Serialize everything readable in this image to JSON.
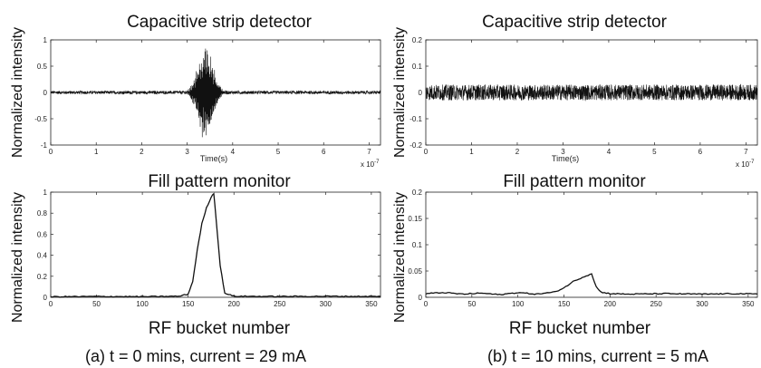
{
  "captions": {
    "a": "(a) t = 0 mins, current = 29 mA",
    "b": "(b) t = 10 mins, current = 5 mA"
  },
  "chart_data": [
    {
      "id": "a_top",
      "type": "line",
      "title": "Capacitive strip detector",
      "ylabel": "Normalized intensity",
      "xlabel": "Time(s)",
      "x_exponent": "x 10",
      "x_exponent_power": "-7",
      "xlim": [
        0,
        7.25
      ],
      "ylim": [
        -1,
        1
      ],
      "xticks": [
        0,
        1,
        2,
        3,
        4,
        5,
        6,
        7
      ],
      "yticks": [
        -1,
        -0.5,
        0,
        0.5,
        1
      ],
      "signal": {
        "noise_amplitude": 0.03,
        "burst_center": 3.4,
        "burst_width": 0.22,
        "burst_peak": 0.95
      }
    },
    {
      "id": "a_bottom",
      "type": "line",
      "title": "Fill pattern monitor",
      "ylabel": "Normalized intensity",
      "xlabel": "RF bucket number",
      "xlim": [
        0,
        360
      ],
      "ylim": [
        0,
        1
      ],
      "xticks": [
        0,
        50,
        100,
        150,
        200,
        250,
        300,
        350
      ],
      "yticks": [
        0,
        0.2,
        0.4,
        0.6,
        0.8,
        1
      ],
      "series": [
        {
          "x": [
            0,
            50,
            100,
            140,
            150,
            155,
            160,
            165,
            170,
            175,
            178,
            180,
            185,
            190,
            200,
            250,
            300,
            360
          ],
          "y": [
            0.005,
            0.008,
            0.006,
            0.01,
            0.03,
            0.15,
            0.45,
            0.7,
            0.85,
            0.95,
            0.99,
            0.8,
            0.3,
            0.04,
            0.01,
            0.008,
            0.01,
            0.008
          ]
        }
      ]
    },
    {
      "id": "b_top",
      "type": "line",
      "title": "Capacitive strip detector",
      "ylabel": "Normalized intensity",
      "xlabel": "Time(s)",
      "x_exponent": "x 10",
      "x_exponent_power": "-7",
      "xlim": [
        0,
        7.25
      ],
      "ylim": [
        -0.2,
        0.2
      ],
      "xticks": [
        0,
        1,
        2,
        3,
        4,
        5,
        6,
        7
      ],
      "yticks": [
        -0.2,
        -0.1,
        0,
        0.1,
        0.2
      ],
      "signal": {
        "noise_amplitude": 0.03,
        "burst_center": 3.4,
        "burst_width": 0.2,
        "burst_peak": 0.0
      }
    },
    {
      "id": "b_bottom",
      "type": "line",
      "title": "Fill pattern monitor",
      "ylabel": "Normalized intensity",
      "xlabel": "RF bucket number",
      "xlim": [
        0,
        360
      ],
      "ylim": [
        0,
        0.2
      ],
      "xticks": [
        0,
        50,
        100,
        150,
        200,
        250,
        300,
        350
      ],
      "yticks": [
        0,
        0.05,
        0.1,
        0.15,
        0.2
      ],
      "series": [
        {
          "x": [
            0,
            20,
            40,
            60,
            80,
            100,
            120,
            140,
            150,
            160,
            170,
            180,
            185,
            190,
            200,
            220,
            260,
            300,
            340,
            360
          ],
          "y": [
            0.007,
            0.009,
            0.006,
            0.008,
            0.005,
            0.009,
            0.006,
            0.01,
            0.018,
            0.03,
            0.038,
            0.045,
            0.02,
            0.01,
            0.007,
            0.006,
            0.007,
            0.006,
            0.007,
            0.006
          ]
        }
      ]
    }
  ]
}
